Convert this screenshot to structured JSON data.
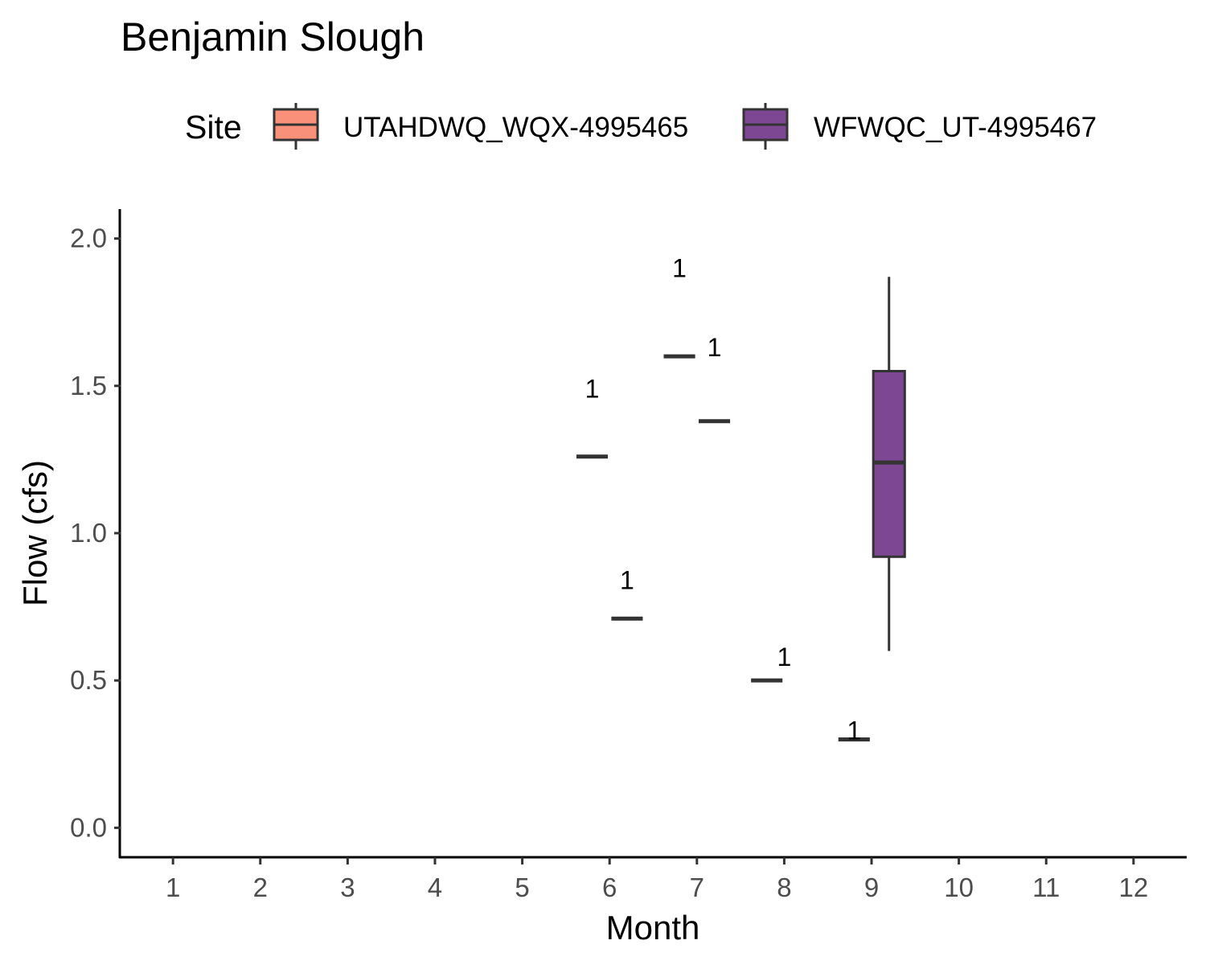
{
  "chart_data": {
    "type": "boxplot",
    "title": "Benjamin Slough",
    "xlabel": "Month",
    "ylabel": "Flow (cfs)",
    "legend": {
      "title": "Site",
      "position": "top",
      "entries": [
        {
          "name": "UTAHDWQ_WQX-4995465",
          "color": "#F8907A"
        },
        {
          "name": "WFWQC_UT-4995467",
          "color": "#7E4794"
        }
      ]
    },
    "x_ticks": [
      "1",
      "2",
      "3",
      "4",
      "5",
      "6",
      "7",
      "8",
      "9",
      "10",
      "11",
      "12"
    ],
    "xlim": [
      0.4,
      12.6
    ],
    "y_ticks": [
      "0.0",
      "0.5",
      "1.0",
      "1.5",
      "2.0"
    ],
    "y_tick_values": [
      0.0,
      0.5,
      1.0,
      1.5,
      2.0
    ],
    "ylim": [
      -0.1,
      2.1
    ],
    "grid": false,
    "series": [
      {
        "name": "UTAHDWQ_WQX-4995465",
        "boxes": [
          {
            "month": 6,
            "min": 1.26,
            "q1": 1.26,
            "median": 1.26,
            "q3": 1.26,
            "max": 1.26
          },
          {
            "month": 7,
            "min": 1.6,
            "q1": 1.6,
            "median": 1.6,
            "q3": 1.6,
            "max": 1.6
          },
          {
            "month": 8,
            "min": 0.5,
            "q1": 0.5,
            "median": 0.5,
            "q3": 0.5,
            "max": 0.5
          },
          {
            "month": 9,
            "min": 0.3,
            "q1": 0.3,
            "median": 0.3,
            "q3": 0.3,
            "max": 0.3
          }
        ]
      },
      {
        "name": "WFWQC_UT-4995467",
        "boxes": [
          {
            "month": 6,
            "min": 0.71,
            "q1": 0.71,
            "median": 0.71,
            "q3": 0.71,
            "max": 0.71
          },
          {
            "month": 7,
            "min": 1.38,
            "q1": 1.38,
            "median": 1.38,
            "q3": 1.38,
            "max": 1.38
          },
          {
            "month": 9,
            "min": 0.6,
            "q1": 0.92,
            "median": 1.24,
            "q3": 1.55,
            "max": 1.87
          }
        ]
      }
    ],
    "annotations": [
      {
        "text": "1",
        "x": 5.8,
        "y": 1.49
      },
      {
        "text": "1",
        "x": 6.2,
        "y": 0.84
      },
      {
        "text": "1",
        "x": 6.8,
        "y": 1.9
      },
      {
        "text": "1",
        "x": 7.2,
        "y": 1.63
      },
      {
        "text": "1",
        "x": 8.0,
        "y": 0.58
      },
      {
        "text": "1",
        "x": 8.8,
        "y": 0.33
      }
    ]
  }
}
